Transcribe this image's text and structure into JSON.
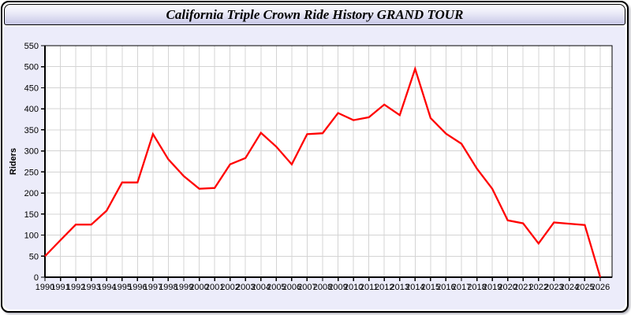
{
  "header": {
    "title": "California Triple Crown Ride History GRAND TOUR"
  },
  "chart_data": {
    "type": "line",
    "title": "California Triple Crown Ride History GRAND TOUR",
    "xlabel": "",
    "ylabel": "Riders",
    "x": [
      1990,
      1991,
      1992,
      1993,
      1994,
      1995,
      1996,
      1997,
      1998,
      1999,
      2000,
      2001,
      2002,
      2003,
      2004,
      2005,
      2006,
      2007,
      2008,
      2009,
      2010,
      2011,
      2012,
      2013,
      2014,
      2015,
      2016,
      2017,
      2018,
      2019,
      2020,
      2021,
      2022,
      2023,
      2024,
      2025,
      2026
    ],
    "series": [
      {
        "name": "Riders",
        "values": [
          50,
          88,
          125,
          125,
          158,
          225,
          225,
          340,
          280,
          240,
          210,
          212,
          268,
          283,
          343,
          310,
          268,
          340,
          342,
          390,
          373,
          380,
          410,
          385,
          495,
          378,
          341,
          317,
          258,
          210,
          135,
          128,
          80,
          130,
          127,
          124,
          0
        ]
      }
    ],
    "ylim": [
      0,
      550
    ],
    "ytick_step": 50,
    "xtick_step": 1,
    "grid": true,
    "legend_position": "none",
    "line_color": "#ff0000",
    "plot_bg": "#ffffff",
    "grid_color": "#d4d4d4",
    "axis_color": "#000000"
  },
  "colors": {
    "body_bg": "#ececfa",
    "titlebar_top": "#fdfdff",
    "titlebar_bottom": "#c7c7e6",
    "window_border": "#000000"
  }
}
